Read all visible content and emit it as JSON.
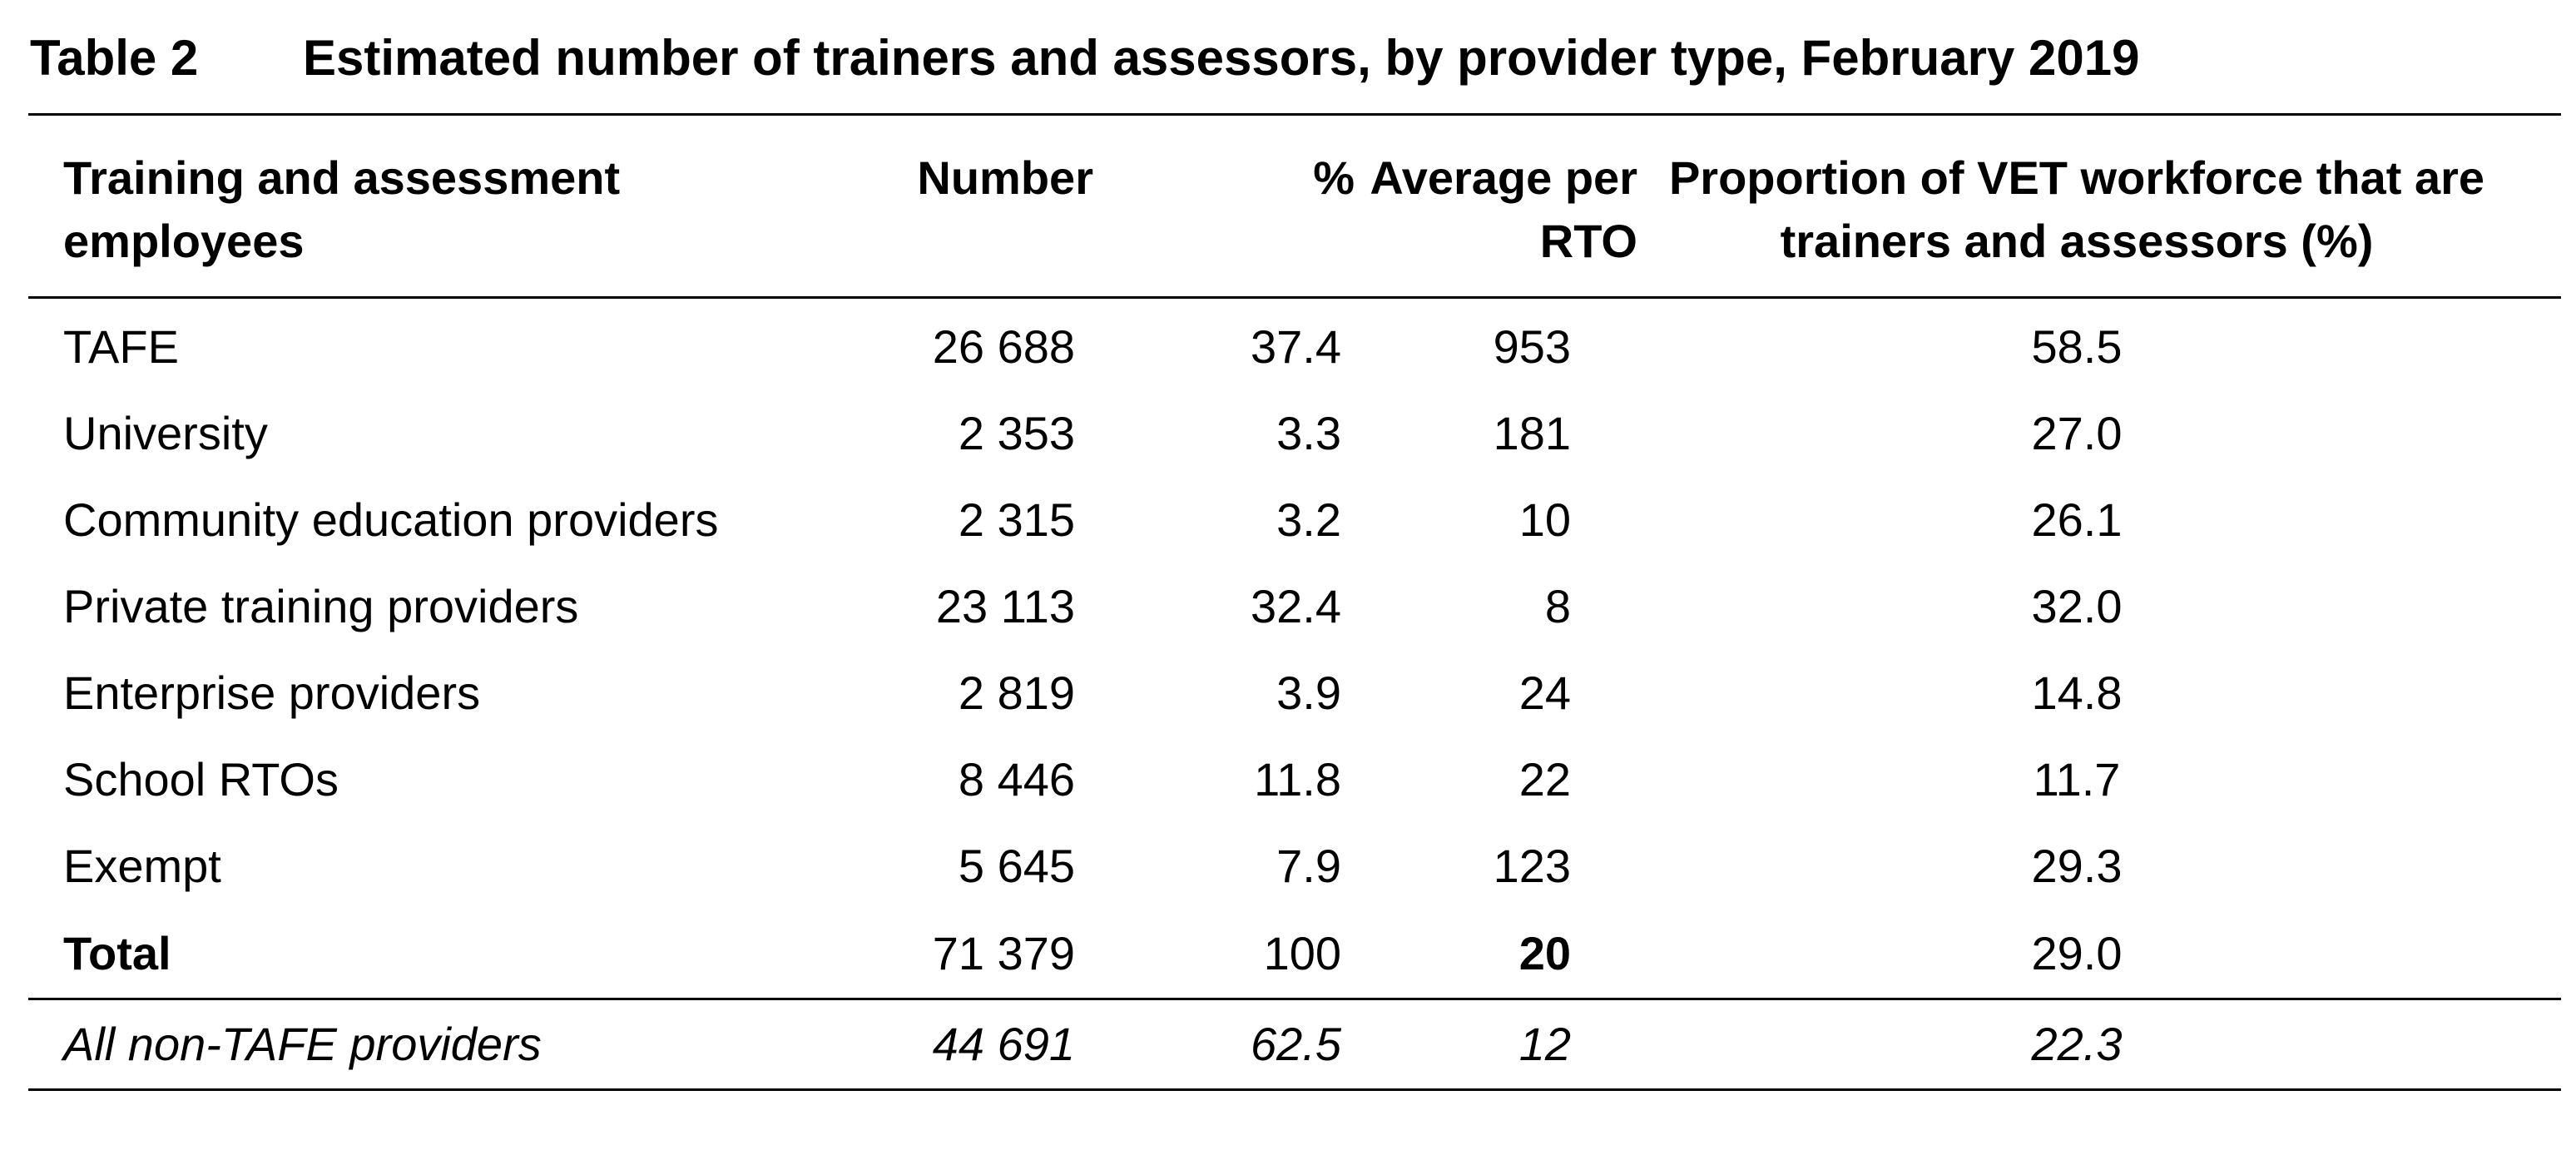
{
  "caption": {
    "label": "Table 2",
    "title": "Estimated number of trainers and assessors, by provider type, February 2019"
  },
  "table": {
    "headers": [
      "Training and assessment employees",
      "Number",
      "%",
      "Average per RTO",
      "Proportion of VET workforce that are trainers and assessors (%)"
    ],
    "rows": [
      {
        "name": "TAFE",
        "number": "26 688",
        "percent": "37.4",
        "average": "953",
        "proportion": "58.5"
      },
      {
        "name": "University",
        "number": "2 353",
        "percent": "3.3",
        "average": "181",
        "proportion": "27.0"
      },
      {
        "name": "Community education providers",
        "number": "2 315",
        "percent": "3.2",
        "average": "10",
        "proportion": "26.1"
      },
      {
        "name": "Private training providers",
        "number": "23 113",
        "percent": "32.4",
        "average": "8",
        "proportion": "32.0"
      },
      {
        "name": "Enterprise providers",
        "number": "2 819",
        "percent": "3.9",
        "average": "24",
        "proportion": "14.8"
      },
      {
        "name": "School RTOs",
        "number": "8 446",
        "percent": "11.8",
        "average": "22",
        "proportion": "11.7"
      },
      {
        "name": "Exempt",
        "number": "5 645",
        "percent": "7.9",
        "average": "123",
        "proportion": "29.3"
      }
    ],
    "total": {
      "name": "Total",
      "number": "71 379",
      "percent": "100",
      "average": "20",
      "proportion": "29.0"
    },
    "non_tafe": {
      "name": "All non-TAFE providers",
      "number": "44 691",
      "percent": "62.5",
      "average": "12",
      "proportion": "22.3"
    }
  }
}
